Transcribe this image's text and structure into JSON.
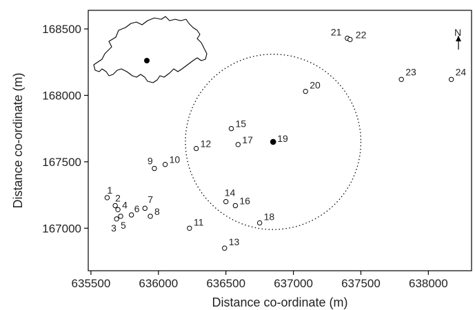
{
  "chart_data": {
    "type": "scatter",
    "title": "",
    "xlabel": "Distance co-ordinate (m)",
    "ylabel": "Distance co-ordinate (m)",
    "xlim": [
      635480,
      638320
    ],
    "ylim": [
      166680,
      168640
    ],
    "xticks": [
      635500,
      636000,
      636500,
      637000,
      637500,
      638000
    ],
    "yticks": [
      167000,
      167500,
      168000,
      168500
    ],
    "grid": false,
    "points": [
      {
        "label": "1",
        "x": 635620,
        "y": 167230,
        "filled": false,
        "label_dx": 0,
        "label_dy": -6
      },
      {
        "label": "2",
        "x": 635680,
        "y": 167170,
        "filled": false,
        "label_dx": 0,
        "label_dy": -6
      },
      {
        "label": "3",
        "x": 635690,
        "y": 167070,
        "filled": false,
        "label_dx": -8,
        "label_dy": 18
      },
      {
        "label": "4",
        "x": 635700,
        "y": 167140,
        "filled": false,
        "label_dx": 6,
        "label_dy": -2
      },
      {
        "label": "5",
        "x": 635720,
        "y": 167090,
        "filled": false,
        "label_dx": 0,
        "label_dy": 18
      },
      {
        "label": "6",
        "x": 635800,
        "y": 167100,
        "filled": false,
        "label_dx": 4,
        "label_dy": -4
      },
      {
        "label": "7",
        "x": 635900,
        "y": 167150,
        "filled": false,
        "label_dx": 4,
        "label_dy": -8
      },
      {
        "label": "8",
        "x": 635940,
        "y": 167090,
        "filled": false,
        "label_dx": 6,
        "label_dy": -2
      },
      {
        "label": "9",
        "x": 635970,
        "y": 167450,
        "filled": false,
        "label_dx": -10,
        "label_dy": -6
      },
      {
        "label": "10",
        "x": 636050,
        "y": 167480,
        "filled": false,
        "label_dx": 6,
        "label_dy": -2
      },
      {
        "label": "11",
        "x": 636230,
        "y": 167000,
        "filled": false,
        "label_dx": 6,
        "label_dy": -4
      },
      {
        "label": "12",
        "x": 636280,
        "y": 167600,
        "filled": false,
        "label_dx": 6,
        "label_dy": -2
      },
      {
        "label": "13",
        "x": 636490,
        "y": 166850,
        "filled": false,
        "label_dx": 6,
        "label_dy": -4
      },
      {
        "label": "14",
        "x": 636500,
        "y": 167200,
        "filled": false,
        "label_dx": -2,
        "label_dy": -8
      },
      {
        "label": "15",
        "x": 636540,
        "y": 167750,
        "filled": false,
        "label_dx": 6,
        "label_dy": -2
      },
      {
        "label": "16",
        "x": 636570,
        "y": 167170,
        "filled": false,
        "label_dx": 6,
        "label_dy": -2
      },
      {
        "label": "17",
        "x": 636590,
        "y": 167630,
        "filled": false,
        "label_dx": 6,
        "label_dy": -2
      },
      {
        "label": "18",
        "x": 636750,
        "y": 167040,
        "filled": false,
        "label_dx": 6,
        "label_dy": -4
      },
      {
        "label": "19",
        "x": 636850,
        "y": 167650,
        "filled": true,
        "label_dx": 6,
        "label_dy": 0
      },
      {
        "label": "20",
        "x": 637090,
        "y": 168030,
        "filled": false,
        "label_dx": 6,
        "label_dy": -4
      },
      {
        "label": "21",
        "x": 637400,
        "y": 168430,
        "filled": false,
        "label_dx": -24,
        "label_dy": -4
      },
      {
        "label": "22",
        "x": 637420,
        "y": 168420,
        "filled": false,
        "label_dx": 8,
        "label_dy": -2
      },
      {
        "label": "23",
        "x": 637800,
        "y": 168120,
        "filled": false,
        "label_dx": 6,
        "label_dy": -6
      },
      {
        "label": "24",
        "x": 638170,
        "y": 168120,
        "filled": false,
        "label_dx": 6,
        "label_dy": -6
      }
    ],
    "circle": {
      "center_x": 636850,
      "center_y": 167650,
      "radius_m": 650,
      "style": "dotted"
    },
    "north_arrow": "N",
    "inset": "switzerland-outline-map"
  }
}
